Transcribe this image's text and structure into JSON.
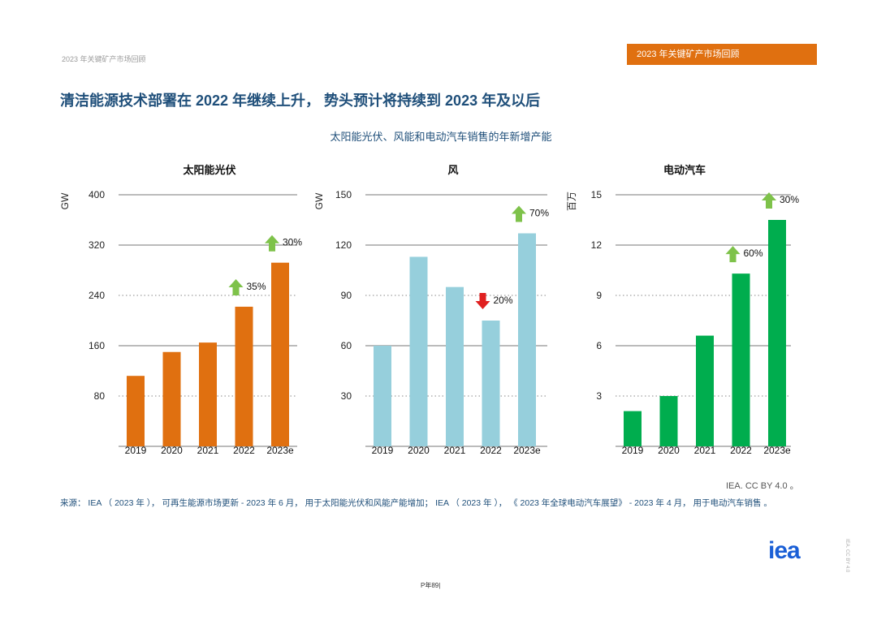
{
  "header": {
    "left_text": "2023 年关键矿产市场回顾",
    "tab_text": "2023 年关键矿产市场回顾"
  },
  "title": "清洁能源技术部署在 2022 年继续上升， 势头预计将持续到 2023 年及以后",
  "subtitle": "太阳能光伏、风能和电动汽车销售的年新增产能",
  "colors": {
    "solar": "#e07010",
    "wind": "#96cfdc",
    "ev": "#00ad4e",
    "arrow_up": "#7ec24a",
    "arrow_down": "#e02020",
    "accent": "#e07010",
    "title": "#1f4f7a"
  },
  "chart_data": [
    {
      "type": "bar",
      "title": "太阳能光伏",
      "ylabel": "GW",
      "categories": [
        "2019",
        "2020",
        "2021",
        "2022",
        "2023e"
      ],
      "values": [
        112,
        150,
        165,
        222,
        292
      ],
      "ylim": [
        0,
        400
      ],
      "yticks": [
        80,
        160,
        240,
        320,
        400
      ],
      "grid": "mixed",
      "growth": {
        "label": "35%",
        "direction": "up",
        "index": 3
      },
      "growth2": {
        "label": "30%",
        "direction": "up",
        "index": 4
      }
    },
    {
      "type": "bar",
      "title": "风",
      "ylabel": "GW",
      "categories": [
        "2019",
        "2020",
        "2021",
        "2022",
        "2023e"
      ],
      "values": [
        60,
        113,
        95,
        75,
        127
      ],
      "ylim": [
        0,
        150
      ],
      "yticks": [
        30,
        60,
        90,
        120,
        150
      ],
      "grid": "mixed",
      "growth": {
        "label": "20%",
        "direction": "down",
        "index": 3
      },
      "growth2": {
        "label": "70%",
        "direction": "up",
        "index": 4
      }
    },
    {
      "type": "bar",
      "title": "电动汽车",
      "ylabel": "百万",
      "categories": [
        "2019",
        "2020",
        "2021",
        "2022",
        "2023e"
      ],
      "values": [
        2.1,
        3.0,
        6.6,
        10.3,
        13.5
      ],
      "ylim": [
        0,
        15
      ],
      "yticks": [
        3,
        6,
        9,
        12,
        15
      ],
      "grid": "mixed",
      "growth": {
        "label": "60%",
        "direction": "up",
        "index": 3
      },
      "growth2": {
        "label": "30%",
        "direction": "up",
        "index": 4
      }
    }
  ],
  "credit": "IEA. CC BY 4.0 。",
  "source": "来源： IEA （ 2023 年 ）， 可再生能源市场更新 - 2023 年 6 月， 用于太阳能光伏和风能产能增加； IEA （ 2023 年 ）， 《 2023 年全球电动汽车展望》 - 2023 年 4 月， 用于电动汽车销售 。",
  "logo": "iea",
  "side_note": "IEA. CC BY 4.0",
  "footer": "P年89|"
}
